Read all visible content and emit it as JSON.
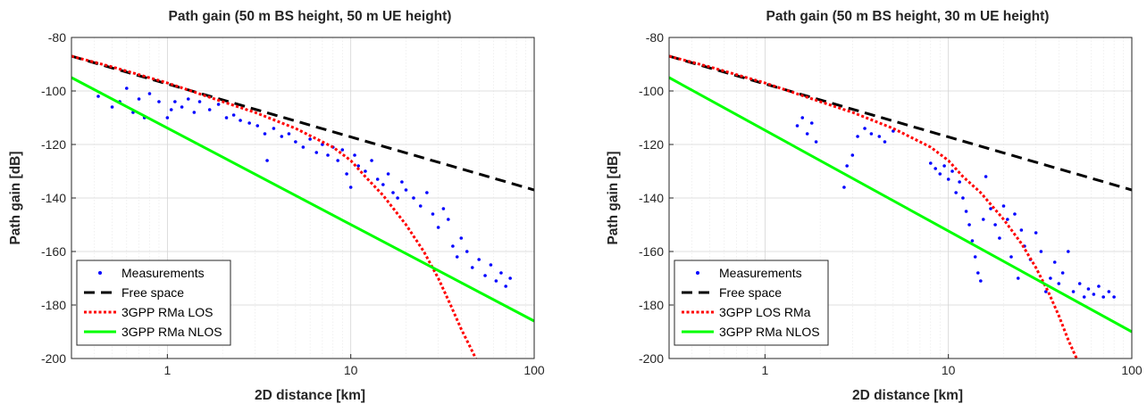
{
  "chart_data": [
    {
      "type": "scatter",
      "title": "Path gain (50 m BS height, 50 m UE height)",
      "xlabel": "2D distance [km]",
      "ylabel": "Path gain [dB]",
      "xscale": "log",
      "xlim": [
        0.3,
        100
      ],
      "ylim": [
        -200,
        -80
      ],
      "xticks": [
        1,
        10,
        100
      ],
      "xtick_labels": [
        "1",
        "10",
        "100"
      ],
      "yticks": [
        -200,
        -180,
        -160,
        -140,
        -120,
        -100,
        -80
      ],
      "ytick_labels": [
        "-200",
        "-180",
        "-160",
        "-140",
        "-120",
        "-100",
        "-80"
      ],
      "grid": "on",
      "legend_position": "bottom-left",
      "series": [
        {
          "name": "Measurements",
          "kind": "scatter",
          "color": "#0000ff",
          "points": [
            [
              0.42,
              -102
            ],
            [
              0.5,
              -106
            ],
            [
              0.55,
              -104
            ],
            [
              0.6,
              -99
            ],
            [
              0.65,
              -108
            ],
            [
              0.7,
              -103
            ],
            [
              0.75,
              -110
            ],
            [
              0.8,
              -101
            ],
            [
              0.9,
              -104
            ],
            [
              1.0,
              -110
            ],
            [
              1.05,
              -107
            ],
            [
              1.1,
              -104
            ],
            [
              1.2,
              -106
            ],
            [
              1.3,
              -103
            ],
            [
              1.4,
              -108
            ],
            [
              1.5,
              -104
            ],
            [
              1.7,
              -107
            ],
            [
              1.9,
              -105
            ],
            [
              2.1,
              -110
            ],
            [
              2.3,
              -109
            ],
            [
              2.5,
              -111
            ],
            [
              2.8,
              -112
            ],
            [
              3.1,
              -113
            ],
            [
              3.4,
              -116
            ],
            [
              3.5,
              -126
            ],
            [
              3.8,
              -114
            ],
            [
              4.2,
              -117
            ],
            [
              4.6,
              -116
            ],
            [
              5.0,
              -119
            ],
            [
              5.5,
              -121
            ],
            [
              6.0,
              -118
            ],
            [
              6.5,
              -123
            ],
            [
              7.0,
              -120
            ],
            [
              7.5,
              -124
            ],
            [
              8.0,
              -121
            ],
            [
              8.5,
              -126
            ],
            [
              9.0,
              -122
            ],
            [
              9.5,
              -131
            ],
            [
              10.0,
              -136
            ],
            [
              10.5,
              -124
            ],
            [
              11.0,
              -128
            ],
            [
              12.0,
              -130
            ],
            [
              13.0,
              -126
            ],
            [
              14.0,
              -133
            ],
            [
              15.0,
              -135
            ],
            [
              16.0,
              -131
            ],
            [
              17.0,
              -138
            ],
            [
              18.0,
              -140
            ],
            [
              19.0,
              -134
            ],
            [
              20.0,
              -137
            ],
            [
              22.0,
              -140
            ],
            [
              24.0,
              -143
            ],
            [
              26.0,
              -138
            ],
            [
              28.0,
              -146
            ],
            [
              30.0,
              -151
            ],
            [
              32.0,
              -144
            ],
            [
              34.0,
              -148
            ],
            [
              36.0,
              -158
            ],
            [
              38.0,
              -162
            ],
            [
              40.0,
              -155
            ],
            [
              43.0,
              -160
            ],
            [
              46.0,
              -166
            ],
            [
              50.0,
              -163
            ],
            [
              54.0,
              -169
            ],
            [
              58.0,
              -165
            ],
            [
              62.0,
              -171
            ],
            [
              66.0,
              -168
            ],
            [
              70.0,
              -173
            ],
            [
              74.0,
              -170
            ]
          ]
        },
        {
          "name": "Free space",
          "kind": "line",
          "color": "#000000",
          "dash": "dashed",
          "x": [
            0.3,
            100
          ],
          "y": [
            -87,
            -137
          ]
        },
        {
          "name": "3GPP RMa LOS",
          "kind": "line",
          "color": "#ff0000",
          "dash": "dotted",
          "x": [
            0.3,
            0.5,
            1,
            2,
            3,
            5,
            8,
            10,
            12,
            15,
            20,
            25,
            30,
            35,
            40,
            45,
            48
          ],
          "y": [
            -87,
            -91,
            -97,
            -104,
            -108,
            -114,
            -121,
            -126,
            -132,
            -139,
            -150,
            -160,
            -170,
            -180,
            -189,
            -196,
            -200
          ]
        },
        {
          "name": "3GPP RMa NLOS",
          "kind": "line",
          "color": "#00ff00",
          "dash": "solid",
          "x": [
            0.3,
            100
          ],
          "y": [
            -95,
            -186
          ]
        }
      ]
    },
    {
      "type": "scatter",
      "title": "Path gain (50 m BS height, 30 m UE height)",
      "xlabel": "2D distance [km]",
      "ylabel": "Path gain [dB]",
      "xscale": "log",
      "xlim": [
        0.3,
        100
      ],
      "ylim": [
        -200,
        -80
      ],
      "xticks": [
        1,
        10,
        100
      ],
      "xtick_labels": [
        "1",
        "10",
        "100"
      ],
      "yticks": [
        -200,
        -180,
        -160,
        -140,
        -120,
        -100,
        -80
      ],
      "ytick_labels": [
        "-200",
        "-180",
        "-160",
        "-140",
        "-120",
        "-100",
        "-80"
      ],
      "grid": "on",
      "legend_position": "bottom-left",
      "series": [
        {
          "name": "Measurements",
          "kind": "scatter",
          "color": "#0000ff",
          "points": [
            [
              1.5,
              -113
            ],
            [
              1.6,
              -110
            ],
            [
              1.7,
              -116
            ],
            [
              1.8,
              -112
            ],
            [
              1.9,
              -119
            ],
            [
              2.7,
              -136
            ],
            [
              2.8,
              -128
            ],
            [
              3.0,
              -124
            ],
            [
              3.2,
              -117
            ],
            [
              3.5,
              -114
            ],
            [
              3.8,
              -116
            ],
            [
              4.2,
              -117
            ],
            [
              4.5,
              -119
            ],
            [
              5.0,
              -115
            ],
            [
              8.0,
              -127
            ],
            [
              8.5,
              -129
            ],
            [
              9.0,
              -131
            ],
            [
              9.5,
              -128
            ],
            [
              10.0,
              -133
            ],
            [
              10.5,
              -130
            ],
            [
              11.0,
              -138
            ],
            [
              11.5,
              -134
            ],
            [
              12.0,
              -140
            ],
            [
              12.5,
              -145
            ],
            [
              13.0,
              -150
            ],
            [
              13.5,
              -156
            ],
            [
              14.0,
              -162
            ],
            [
              14.5,
              -168
            ],
            [
              15.0,
              -171
            ],
            [
              15.5,
              -148
            ],
            [
              16.0,
              -132
            ],
            [
              17.0,
              -144
            ],
            [
              18.0,
              -150
            ],
            [
              19.0,
              -155
            ],
            [
              20.0,
              -143
            ],
            [
              21.0,
              -148
            ],
            [
              22.0,
              -162
            ],
            [
              23.0,
              -146
            ],
            [
              24.0,
              -170
            ],
            [
              25.0,
              -152
            ],
            [
              26.0,
              -158
            ],
            [
              28.0,
              -163
            ],
            [
              30.0,
              -153
            ],
            [
              32.0,
              -160
            ],
            [
              34.0,
              -175
            ],
            [
              36.0,
              -170
            ],
            [
              38.0,
              -164
            ],
            [
              40.0,
              -172
            ],
            [
              42.0,
              -168
            ],
            [
              45.0,
              -160
            ],
            [
              48.0,
              -175
            ],
            [
              52.0,
              -172
            ],
            [
              55.0,
              -177
            ],
            [
              58.0,
              -174
            ],
            [
              62.0,
              -176
            ],
            [
              66.0,
              -173
            ],
            [
              70.0,
              -177
            ],
            [
              75.0,
              -175
            ],
            [
              80.0,
              -177
            ]
          ]
        },
        {
          "name": "Free space",
          "kind": "line",
          "color": "#000000",
          "dash": "dashed",
          "x": [
            0.3,
            100
          ],
          "y": [
            -87,
            -137
          ]
        },
        {
          "name": "3GPP LOS RMa",
          "kind": "line",
          "color": "#ff0000",
          "dash": "dotted",
          "x": [
            0.3,
            0.5,
            1,
            2,
            3,
            5,
            8,
            10,
            12,
            15,
            20,
            25,
            30,
            35,
            40,
            45,
            50
          ],
          "y": [
            -87,
            -91,
            -97,
            -104,
            -108,
            -114,
            -121,
            -126,
            -132,
            -138,
            -148,
            -157,
            -166,
            -175,
            -184,
            -193,
            -200
          ]
        },
        {
          "name": "3GPP RMa NLOS",
          "kind": "line",
          "color": "#00ff00",
          "dash": "solid",
          "x": [
            0.3,
            100
          ],
          "y": [
            -95,
            -190
          ]
        }
      ]
    }
  ]
}
